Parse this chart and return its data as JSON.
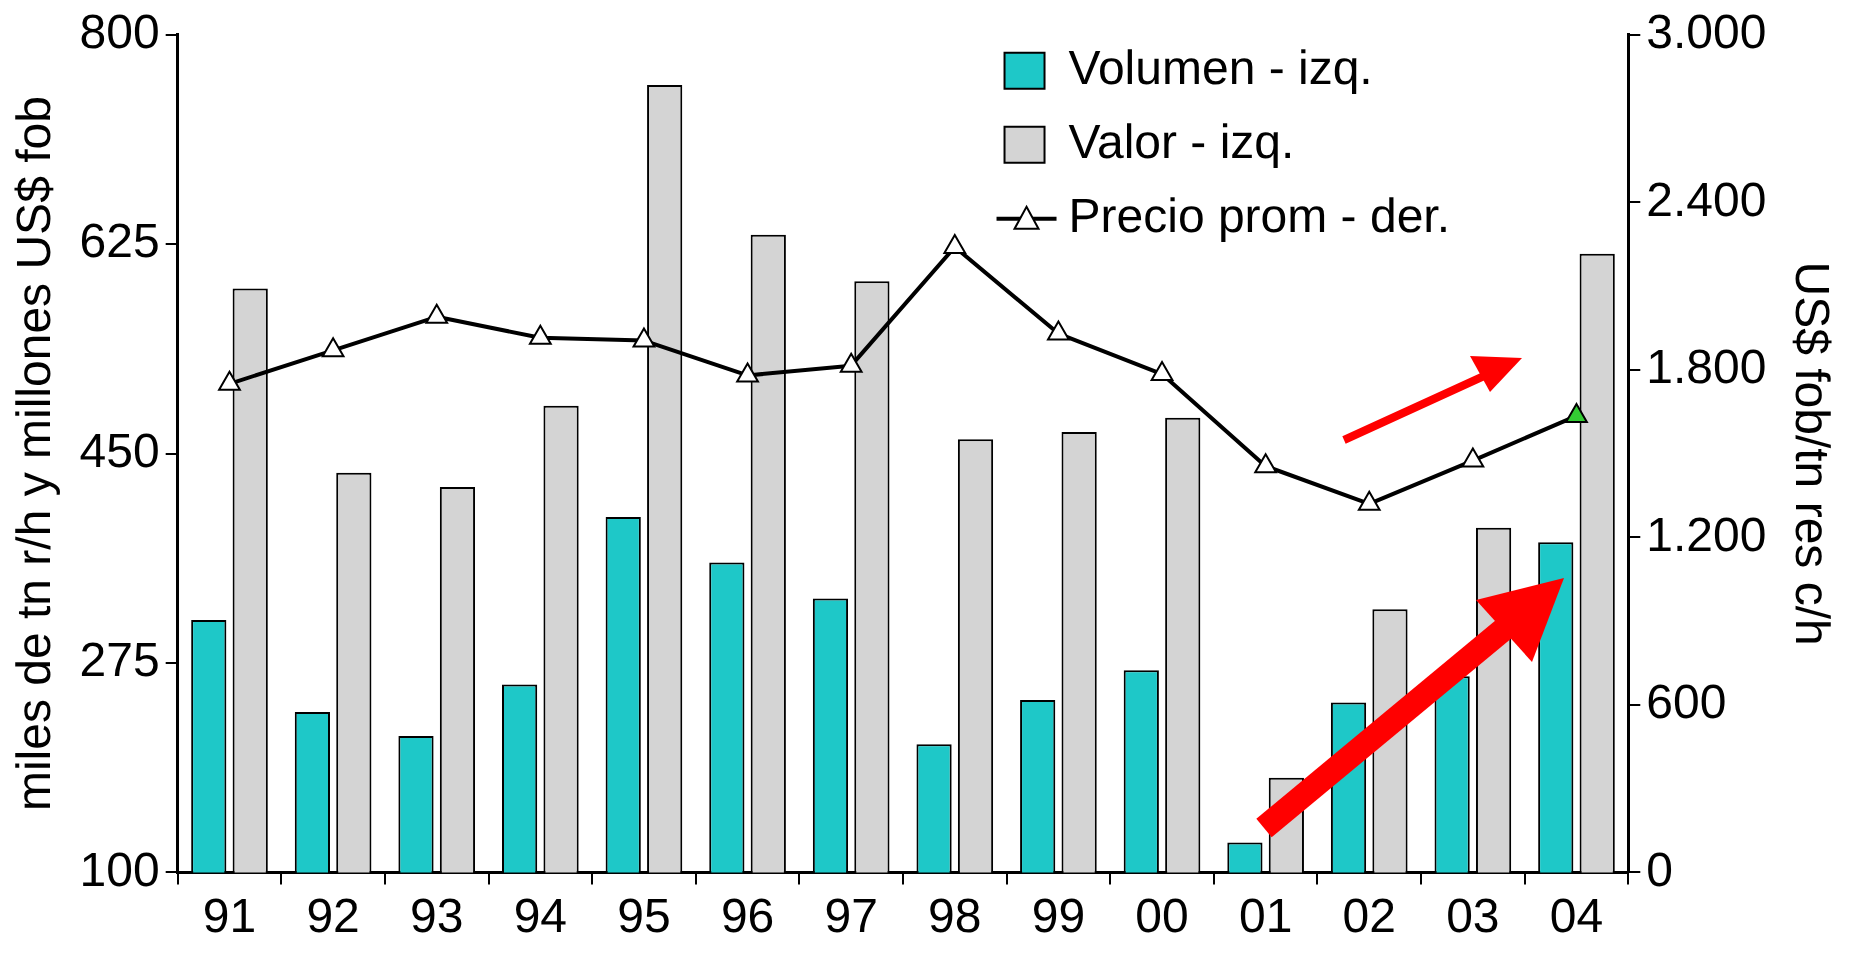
{
  "chart_data": {
    "type": "bar",
    "categories": [
      "91",
      "92",
      "93",
      "94",
      "95",
      "96",
      "97",
      "98",
      "99",
      "00",
      "01",
      "02",
      "03",
      "04"
    ],
    "ylabel": "miles de tn r/h y millones US$ fob",
    "y2label": "US$ fob/tn res c/h",
    "ylim": [
      100,
      800
    ],
    "yticks": [
      100,
      275,
      450,
      625,
      800
    ],
    "y2lim": [
      0,
      3000
    ],
    "y2ticks": [
      0,
      600,
      {
        "value": 1200,
        "label": "1.200"
      },
      {
        "value": 1800,
        "label": "1.800"
      },
      {
        "value": 2400,
        "label": "2.400"
      },
      {
        "value": 3000,
        "label": "3.000"
      }
    ],
    "series": [
      {
        "name": "Volumen - izq.",
        "color": "#1ec8c8",
        "values": [
          311,
          234,
          214,
          257,
          397,
          359,
          329,
          207,
          244,
          269,
          125,
          242,
          264,
          376
        ]
      },
      {
        "name": "Valor - izq.",
        "color": "#d4d4d4",
        "values": [
          588,
          434,
          422,
          490,
          758,
          633,
          594,
          462,
          468,
          480,
          179,
          320,
          388,
          617
        ]
      },
      {
        "name": "Precio prom - der.",
        "type": "line",
        "axis": "y2",
        "color": "#000000",
        "colors": [
          "#ffffff",
          "#ffffff",
          "#ffffff",
          "#ffffff",
          "#ffffff",
          "#ffffff",
          "#ffffff",
          "#ffffff",
          "#ffffff",
          "#ffffff",
          "#ffffff",
          "#ffffff",
          "#ffffff",
          "#33cc33"
        ],
        "values": [
          1750,
          1870,
          1990,
          1915,
          1905,
          1780,
          1815,
          2240,
          1930,
          1785,
          1455,
          1320,
          1475,
          1635
        ]
      }
    ],
    "grid": false,
    "legend": "top right",
    "marker": "triangle",
    "line_style": "solid"
  }
}
